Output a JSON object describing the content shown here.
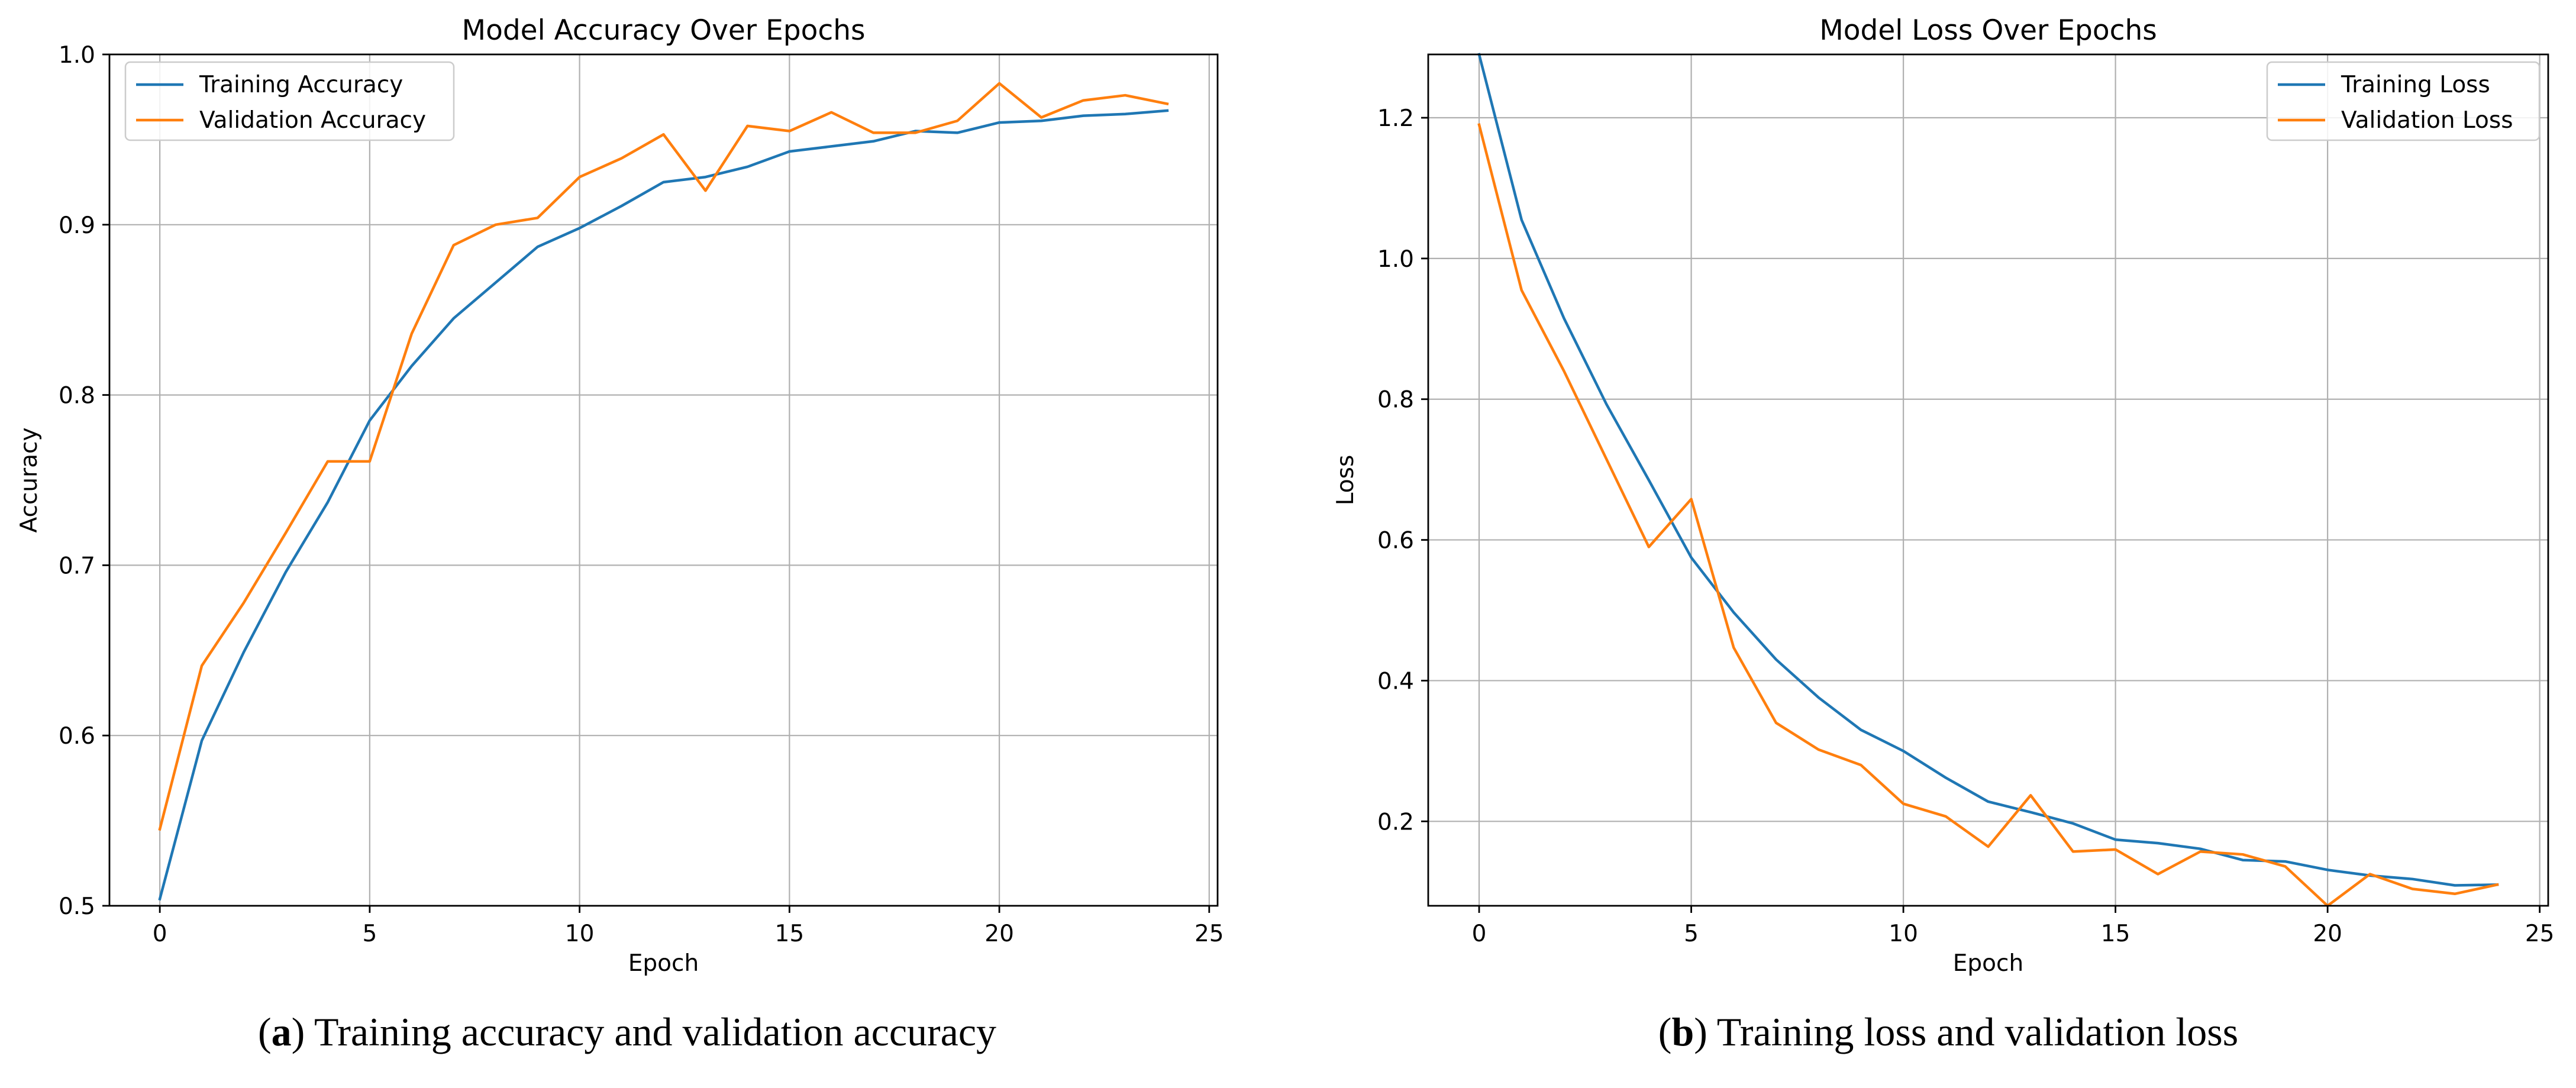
{
  "chart_data": [
    {
      "type": "line",
      "title": "Model Accuracy Over Epochs",
      "xlabel": "Epoch",
      "ylabel": "Accuracy",
      "xlim": [
        -1.2,
        25.2
      ],
      "ylim": [
        0.5,
        1.0
      ],
      "xticks": [
        0,
        5,
        10,
        15,
        20,
        25
      ],
      "yticks": [
        0.5,
        0.6,
        0.7,
        0.8,
        0.9,
        1.0
      ],
      "grid": true,
      "legend": "top-left",
      "x": [
        0,
        1,
        2,
        3,
        4,
        5,
        6,
        7,
        8,
        9,
        10,
        11,
        12,
        13,
        14,
        15,
        16,
        17,
        18,
        19,
        20,
        21,
        22,
        23,
        24
      ],
      "series": [
        {
          "name": "Training Accuracy",
          "color": "#1f77b4",
          "values": [
            0.504,
            0.597,
            0.649,
            0.696,
            0.737,
            0.785,
            0.817,
            0.845,
            0.866,
            0.887,
            0.898,
            0.911,
            0.925,
            0.928,
            0.934,
            0.943,
            0.946,
            0.949,
            0.955,
            0.954,
            0.96,
            0.961,
            0.964,
            0.965,
            0.967
          ]
        },
        {
          "name": "Validation Accuracy",
          "color": "#ff7f0e",
          "values": [
            0.545,
            0.641,
            0.678,
            0.719,
            0.761,
            0.761,
            0.836,
            0.888,
            0.9,
            0.904,
            0.928,
            0.939,
            0.953,
            0.92,
            0.958,
            0.955,
            0.966,
            0.954,
            0.954,
            0.961,
            0.983,
            0.963,
            0.973,
            0.976,
            0.971
          ]
        }
      ],
      "caption_label": "a",
      "caption_text": " Training accuracy and validation accuracy"
    },
    {
      "type": "line",
      "title": "Model Loss Over Epochs",
      "xlabel": "Epoch",
      "ylabel": "Loss",
      "xlim": [
        -1.2,
        25.2
      ],
      "ylim": [
        0.08,
        1.29
      ],
      "xticks": [
        0,
        5,
        10,
        15,
        20,
        25
      ],
      "yticks": [
        0.2,
        0.4,
        0.6,
        0.8,
        1.0,
        1.2
      ],
      "grid": true,
      "legend": "top-right",
      "x": [
        0,
        1,
        2,
        3,
        4,
        5,
        6,
        7,
        8,
        9,
        10,
        11,
        12,
        13,
        14,
        15,
        16,
        17,
        18,
        19,
        20,
        21,
        22,
        23,
        24
      ],
      "series": [
        {
          "name": "Training Loss",
          "color": "#1f77b4",
          "values": [
            1.29,
            1.055,
            0.915,
            0.793,
            0.685,
            0.575,
            0.497,
            0.43,
            0.376,
            0.33,
            0.3,
            0.262,
            0.228,
            0.213,
            0.197,
            0.174,
            0.169,
            0.161,
            0.145,
            0.143,
            0.131,
            0.123,
            0.118,
            0.109,
            0.11
          ]
        },
        {
          "name": "Validation Loss",
          "color": "#ff7f0e",
          "values": [
            1.19,
            0.955,
            0.84,
            0.715,
            0.59,
            0.658,
            0.447,
            0.34,
            0.302,
            0.28,
            0.225,
            0.207,
            0.164,
            0.237,
            0.157,
            0.16,
            0.125,
            0.157,
            0.153,
            0.136,
            0.08,
            0.125,
            0.104,
            0.097,
            0.11
          ]
        }
      ],
      "caption_label": "b",
      "caption_text": " Training loss and validation loss"
    }
  ]
}
